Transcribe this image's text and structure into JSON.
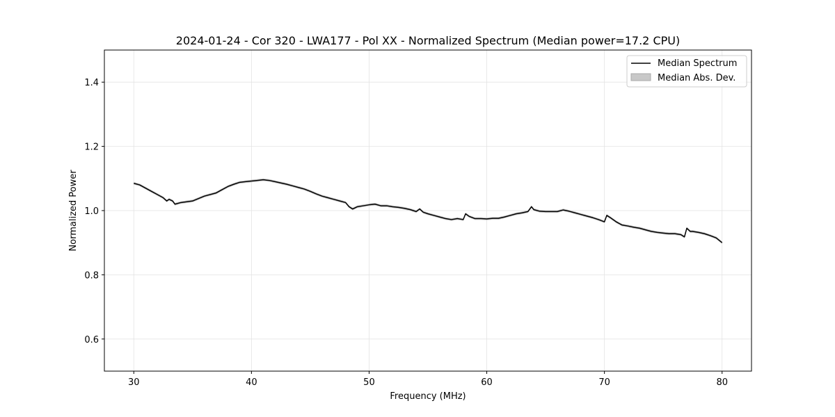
{
  "chart_data": {
    "type": "line",
    "title": "2024-01-24 - Cor 320 - LWA177 - Pol XX - Normalized Spectrum (Median power=17.2 CPU)",
    "xlabel": "Frequency (MHz)",
    "ylabel": "Normalized Power",
    "xlim": [
      27.5,
      82.5
    ],
    "ylim": [
      0.5,
      1.5
    ],
    "xticks": [
      30,
      40,
      50,
      60,
      70,
      80
    ],
    "yticks": [
      0.6,
      0.8,
      1.0,
      1.2,
      1.4
    ],
    "xtick_labels": [
      "30",
      "40",
      "50",
      "60",
      "70",
      "80"
    ],
    "ytick_labels": [
      "0.6",
      "0.8",
      "1.0",
      "1.2",
      "1.4"
    ],
    "grid": true,
    "legend_position": "top-right",
    "series": [
      {
        "name": "Median Spectrum",
        "color": "#000000",
        "style": "line",
        "x": [
          30,
          30.5,
          31,
          31.5,
          32,
          32.5,
          32.8,
          33,
          33.3,
          33.5,
          34,
          35,
          36,
          37,
          37.5,
          38,
          38.5,
          39,
          39.5,
          40,
          40.5,
          41,
          41.5,
          42,
          42.5,
          43,
          43.5,
          44,
          44.5,
          45,
          45.5,
          46,
          46.5,
          47,
          47.5,
          48,
          48.3,
          48.6,
          49,
          49.5,
          50,
          50.5,
          51,
          51.5,
          52,
          52.5,
          53,
          53.5,
          54,
          54.3,
          54.6,
          55,
          55.5,
          56,
          56.5,
          57,
          57.5,
          58,
          58.2,
          58.5,
          59,
          59.5,
          60,
          60.5,
          61,
          61.5,
          62,
          62.5,
          63,
          63.5,
          63.8,
          64,
          64.5,
          65,
          65.5,
          66,
          66.5,
          67,
          67.5,
          68,
          68.5,
          69,
          69.5,
          70,
          70.2,
          70.5,
          71,
          71.5,
          72,
          72.5,
          73,
          73.5,
          74,
          74.5,
          75,
          75.5,
          76,
          76.5,
          76.8,
          77,
          77.3,
          77.5,
          78,
          78.5,
          79,
          79.5,
          80
        ],
        "values": [
          1.085,
          1.08,
          1.07,
          1.06,
          1.05,
          1.04,
          1.03,
          1.035,
          1.03,
          1.02,
          1.025,
          1.03,
          1.045,
          1.055,
          1.065,
          1.075,
          1.082,
          1.088,
          1.09,
          1.092,
          1.094,
          1.096,
          1.094,
          1.09,
          1.086,
          1.082,
          1.077,
          1.072,
          1.067,
          1.06,
          1.052,
          1.045,
          1.04,
          1.035,
          1.03,
          1.025,
          1.012,
          1.005,
          1.012,
          1.015,
          1.018,
          1.02,
          1.015,
          1.015,
          1.012,
          1.01,
          1.007,
          1.003,
          0.997,
          1.005,
          0.995,
          0.99,
          0.985,
          0.98,
          0.975,
          0.972,
          0.975,
          0.972,
          0.99,
          0.982,
          0.975,
          0.975,
          0.974,
          0.976,
          0.976,
          0.98,
          0.985,
          0.99,
          0.993,
          0.997,
          1.012,
          1.003,
          0.998,
          0.997,
          0.997,
          0.997,
          1.002,
          0.998,
          0.993,
          0.988,
          0.983,
          0.978,
          0.972,
          0.965,
          0.985,
          0.978,
          0.965,
          0.955,
          0.952,
          0.948,
          0.945,
          0.94,
          0.935,
          0.932,
          0.93,
          0.928,
          0.928,
          0.925,
          0.918,
          0.945,
          0.935,
          0.935,
          0.932,
          0.928,
          0.922,
          0.915,
          0.9
        ]
      }
    ],
    "band": {
      "name": "Median Abs. Dev.",
      "color": "#c8c8c8",
      "half_width": 0.004
    }
  }
}
